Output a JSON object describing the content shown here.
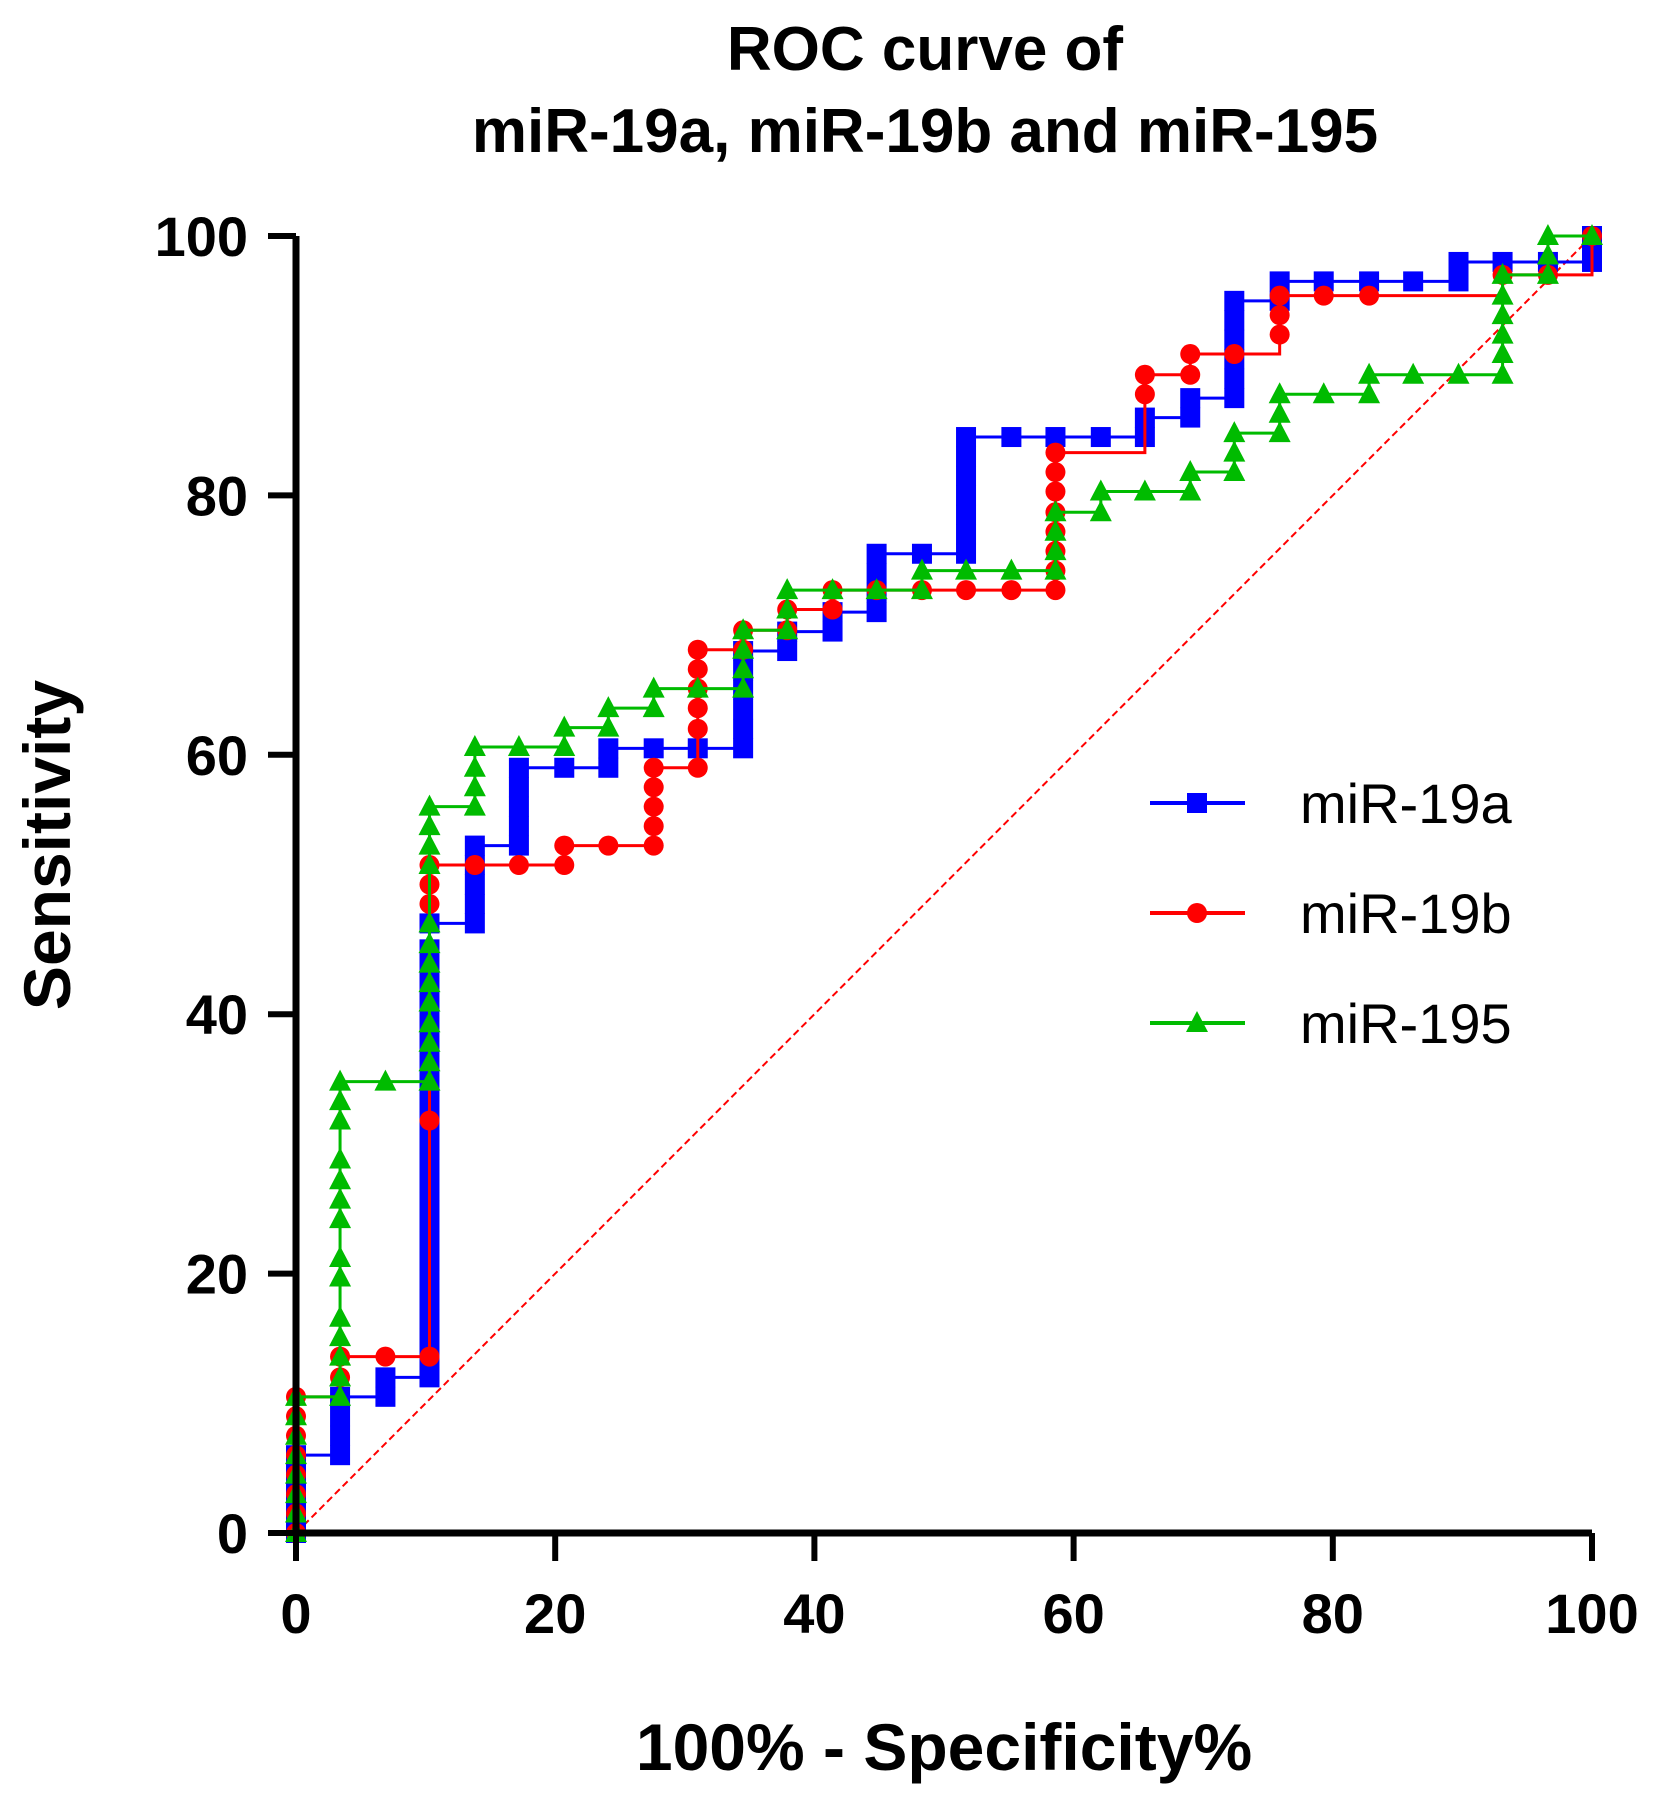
{
  "chart_data": {
    "type": "line",
    "title_lines": [
      "ROC curve of",
      "miR-19a, miR-19b and miR-195"
    ],
    "xlabel": "100% - Specificity%",
    "ylabel": "Sensitivity",
    "xlim": [
      0,
      100
    ],
    "ylim": [
      0,
      100
    ],
    "x_ticks": [
      "0",
      "20",
      "40",
      "60",
      "80",
      "100"
    ],
    "y_ticks": [
      "0",
      "20",
      "40",
      "60",
      "80",
      "100"
    ],
    "grid": false,
    "legend_position": "right",
    "reference_line": {
      "from": [
        0,
        0
      ],
      "to": [
        100,
        100
      ],
      "color": "#ff0000",
      "style": "dashed"
    },
    "series": [
      {
        "name": "miR-19a",
        "color": "#0000ff",
        "marker": "square",
        "points": [
          [
            0,
            0
          ],
          [
            0,
            1.5
          ],
          [
            0,
            3
          ],
          [
            0,
            4.5
          ],
          [
            0,
            6
          ],
          [
            3.4,
            6
          ],
          [
            3.4,
            7.5
          ],
          [
            3.4,
            9
          ],
          [
            3.4,
            10.5
          ],
          [
            6.9,
            10.5
          ],
          [
            6.9,
            12
          ],
          [
            10.3,
            12
          ],
          [
            10.3,
            13.5
          ],
          [
            10.3,
            15
          ],
          [
            10.3,
            16.5
          ],
          [
            10.3,
            18
          ],
          [
            10.3,
            19.5
          ],
          [
            10.3,
            21
          ],
          [
            10.3,
            22.5
          ],
          [
            10.3,
            24
          ],
          [
            10.3,
            25.5
          ],
          [
            10.3,
            27
          ],
          [
            10.3,
            28.5
          ],
          [
            10.3,
            30
          ],
          [
            10.3,
            31.5
          ],
          [
            10.3,
            33
          ],
          [
            10.3,
            34.5
          ],
          [
            10.3,
            36
          ],
          [
            10.3,
            37.5
          ],
          [
            10.3,
            39
          ],
          [
            10.3,
            40.5
          ],
          [
            10.3,
            42
          ],
          [
            10.3,
            43.5
          ],
          [
            10.3,
            45
          ],
          [
            10.3,
            47
          ],
          [
            13.8,
            47
          ],
          [
            13.8,
            48.5
          ],
          [
            13.8,
            50
          ],
          [
            13.8,
            51.5
          ],
          [
            13.8,
            53
          ],
          [
            17.2,
            53
          ],
          [
            17.2,
            54.5
          ],
          [
            17.2,
            56
          ],
          [
            17.2,
            57.5
          ],
          [
            17.2,
            59
          ],
          [
            20.7,
            59
          ],
          [
            24.1,
            59
          ],
          [
            24.1,
            60.5
          ],
          [
            27.6,
            60.5
          ],
          [
            31,
            60.5
          ],
          [
            34.5,
            60.5
          ],
          [
            34.5,
            62
          ],
          [
            34.5,
            63.5
          ],
          [
            34.5,
            65
          ],
          [
            34.5,
            66.5
          ],
          [
            34.5,
            68
          ],
          [
            37.9,
            68
          ],
          [
            37.9,
            69.5
          ],
          [
            41.4,
            69.5
          ],
          [
            41.4,
            71
          ],
          [
            44.8,
            71
          ],
          [
            44.8,
            72.5
          ],
          [
            44.8,
            74
          ],
          [
            44.8,
            75.5
          ],
          [
            48.3,
            75.5
          ],
          [
            51.7,
            75.5
          ],
          [
            51.7,
            77
          ],
          [
            51.7,
            78.5
          ],
          [
            51.7,
            80
          ],
          [
            51.7,
            81.5
          ],
          [
            51.7,
            83
          ],
          [
            51.7,
            84.5
          ],
          [
            55.2,
            84.5
          ],
          [
            58.6,
            84.5
          ],
          [
            62.1,
            84.5
          ],
          [
            65.5,
            84.5
          ],
          [
            65.5,
            86
          ],
          [
            69,
            86
          ],
          [
            69,
            87.5
          ],
          [
            72.4,
            87.5
          ],
          [
            72.4,
            89
          ],
          [
            72.4,
            90.5
          ],
          [
            72.4,
            92
          ],
          [
            72.4,
            93.5
          ],
          [
            72.4,
            95
          ],
          [
            75.9,
            95
          ],
          [
            75.9,
            96.5
          ],
          [
            79.3,
            96.5
          ],
          [
            82.8,
            96.5
          ],
          [
            86.2,
            96.5
          ],
          [
            89.7,
            96.5
          ],
          [
            89.7,
            98
          ],
          [
            93.1,
            98
          ],
          [
            96.6,
            98
          ],
          [
            100,
            98
          ],
          [
            100,
            99.2
          ],
          [
            100,
            100
          ]
        ]
      },
      {
        "name": "miR-19b",
        "color": "#ff0000",
        "marker": "circle",
        "points": [
          [
            0,
            0
          ],
          [
            0,
            1.5
          ],
          [
            0,
            3
          ],
          [
            0,
            4.5
          ],
          [
            0,
            6
          ],
          [
            0,
            7.5
          ],
          [
            0,
            9
          ],
          [
            0,
            10.5
          ],
          [
            3.4,
            12
          ],
          [
            3.4,
            13.6
          ],
          [
            6.9,
            13.6
          ],
          [
            10.3,
            13.6
          ],
          [
            10.3,
            31.8
          ],
          [
            10.3,
            48.5
          ],
          [
            10.3,
            50
          ],
          [
            10.3,
            51.5
          ],
          [
            13.8,
            51.5
          ],
          [
            17.2,
            51.5
          ],
          [
            20.7,
            51.5
          ],
          [
            20.7,
            53
          ],
          [
            24.1,
            53
          ],
          [
            27.6,
            53
          ],
          [
            27.6,
            54.5
          ],
          [
            27.6,
            56
          ],
          [
            27.6,
            57.5
          ],
          [
            27.6,
            59
          ],
          [
            31,
            59
          ],
          [
            31,
            62
          ],
          [
            31,
            63.6
          ],
          [
            31,
            65.1
          ],
          [
            31,
            66.6
          ],
          [
            31,
            68.1
          ],
          [
            34.5,
            68.1
          ],
          [
            34.5,
            69.6
          ],
          [
            37.9,
            69.6
          ],
          [
            37.9,
            71.2
          ],
          [
            41.4,
            71.2
          ],
          [
            41.4,
            72.7
          ],
          [
            44.8,
            72.7
          ],
          [
            48.3,
            72.7
          ],
          [
            51.7,
            72.7
          ],
          [
            55.2,
            72.7
          ],
          [
            58.6,
            72.7
          ],
          [
            58.6,
            74.2
          ],
          [
            58.6,
            75.7
          ],
          [
            58.6,
            77.2
          ],
          [
            58.6,
            78.7
          ],
          [
            58.6,
            80.3
          ],
          [
            58.6,
            81.8
          ],
          [
            58.6,
            83.3
          ],
          [
            65.5,
            87.8
          ],
          [
            65.5,
            89.3
          ],
          [
            69,
            89.3
          ],
          [
            69,
            90.9
          ],
          [
            72.4,
            90.9
          ],
          [
            75.9,
            92.4
          ],
          [
            75.9,
            93.9
          ],
          [
            75.9,
            95.4
          ],
          [
            79.3,
            95.4
          ],
          [
            82.8,
            95.4
          ],
          [
            93.1,
            97
          ],
          [
            96.6,
            97
          ],
          [
            100,
            100
          ]
        ]
      },
      {
        "name": "miR-195",
        "color": "#00bb00",
        "marker": "triangle",
        "points": [
          [
            0,
            0
          ],
          [
            0,
            1.5
          ],
          [
            0,
            3
          ],
          [
            0,
            4.5
          ],
          [
            0,
            6
          ],
          [
            0,
            7.5
          ],
          [
            0,
            9
          ],
          [
            0,
            10.5
          ],
          [
            3.4,
            10.5
          ],
          [
            3.4,
            12
          ],
          [
            3.4,
            13.6
          ],
          [
            3.4,
            15.1
          ],
          [
            3.4,
            16.6
          ],
          [
            3.4,
            19.7
          ],
          [
            3.4,
            21.2
          ],
          [
            3.4,
            24.2
          ],
          [
            3.4,
            25.7
          ],
          [
            3.4,
            27.2
          ],
          [
            3.4,
            28.8
          ],
          [
            3.4,
            31.8
          ],
          [
            3.4,
            33.3
          ],
          [
            3.4,
            34.8
          ],
          [
            6.9,
            34.8
          ],
          [
            10.3,
            34.8
          ],
          [
            10.3,
            36.3
          ],
          [
            10.3,
            37.8
          ],
          [
            10.3,
            39.3
          ],
          [
            10.3,
            40.9
          ],
          [
            10.3,
            42.4
          ],
          [
            10.3,
            43.9
          ],
          [
            10.3,
            45.4
          ],
          [
            10.3,
            47
          ],
          [
            10.3,
            51.5
          ],
          [
            10.3,
            53
          ],
          [
            10.3,
            54.5
          ],
          [
            10.3,
            56
          ],
          [
            13.8,
            56
          ],
          [
            13.8,
            57.5
          ],
          [
            13.8,
            59
          ],
          [
            13.8,
            60.6
          ],
          [
            17.2,
            60.6
          ],
          [
            20.7,
            60.6
          ],
          [
            20.7,
            62.1
          ],
          [
            24.1,
            62.1
          ],
          [
            24.1,
            63.6
          ],
          [
            27.6,
            63.6
          ],
          [
            27.6,
            65.1
          ],
          [
            31,
            65.1
          ],
          [
            34.5,
            65.1
          ],
          [
            34.5,
            66.6
          ],
          [
            34.5,
            68.1
          ],
          [
            34.5,
            69.6
          ],
          [
            37.9,
            69.6
          ],
          [
            37.9,
            71.2
          ],
          [
            37.9,
            72.7
          ],
          [
            41.4,
            72.7
          ],
          [
            44.8,
            72.7
          ],
          [
            48.3,
            72.7
          ],
          [
            48.3,
            74.2
          ],
          [
            51.7,
            74.2
          ],
          [
            55.2,
            74.2
          ],
          [
            58.6,
            74.2
          ],
          [
            58.6,
            75.7
          ],
          [
            58.6,
            77.2
          ],
          [
            58.6,
            78.7
          ],
          [
            62.1,
            78.7
          ],
          [
            62.1,
            80.3
          ],
          [
            65.5,
            80.3
          ],
          [
            69,
            80.3
          ],
          [
            69,
            81.8
          ],
          [
            72.4,
            81.8
          ],
          [
            72.4,
            83.3
          ],
          [
            72.4,
            84.8
          ],
          [
            75.9,
            84.8
          ],
          [
            75.9,
            86.3
          ],
          [
            75.9,
            87.8
          ],
          [
            79.3,
            87.8
          ],
          [
            82.8,
            87.8
          ],
          [
            82.8,
            89.3
          ],
          [
            86.2,
            89.3
          ],
          [
            89.7,
            89.3
          ],
          [
            93.1,
            89.3
          ],
          [
            93.1,
            90.9
          ],
          [
            93.1,
            92.4
          ],
          [
            93.1,
            93.9
          ],
          [
            93.1,
            95.4
          ],
          [
            93.1,
            97
          ],
          [
            96.6,
            97
          ],
          [
            96.6,
            98.5
          ],
          [
            96.6,
            100
          ],
          [
            100,
            100
          ]
        ]
      }
    ]
  }
}
